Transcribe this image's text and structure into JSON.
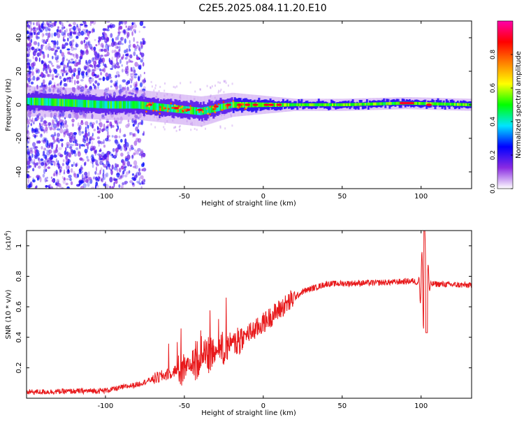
{
  "title": "C2E5.2025.084.11.20.E10",
  "chart_data": [
    {
      "type": "heatmap",
      "xlabel": "Height of straight line (km)",
      "ylabel": "Frequency (Hz)",
      "xlim": [
        -150,
        132
      ],
      "ylim": [
        -50,
        50
      ],
      "xticks": [
        -100,
        -50,
        0,
        50,
        100
      ],
      "yticks": [
        -40,
        -20,
        0,
        20,
        40
      ],
      "colorbar": {
        "label": "Normalized spectral amplitude",
        "range": [
          0.0,
          1.0
        ],
        "ticks": [
          0.0,
          0.2,
          0.4,
          0.6,
          0.8
        ],
        "tick_labels": [
          "0.0",
          "0.2",
          "0.4",
          "0.6",
          "0.8"
        ],
        "stops": [
          "#ffffff",
          "#8a2be2",
          "#0000ff",
          "#00e5ff",
          "#00ff00",
          "#ffff00",
          "#ff8000",
          "#ff0000",
          "#ff00aa"
        ]
      },
      "centerline": [
        {
          "x": -145,
          "y": 2
        },
        {
          "x": -120,
          "y": 1
        },
        {
          "x": -100,
          "y": 0
        },
        {
          "x": -80,
          "y": 0
        },
        {
          "x": -70,
          "y": -1
        },
        {
          "x": -60,
          "y": -2
        },
        {
          "x": -50,
          "y": -3
        },
        {
          "x": -40,
          "y": -4
        },
        {
          "x": -30,
          "y": -2
        },
        {
          "x": -20,
          "y": 0
        },
        {
          "x": 0,
          "y": 0
        },
        {
          "x": 50,
          "y": 0
        },
        {
          "x": 90,
          "y": 1
        },
        {
          "x": 132,
          "y": 0
        }
      ],
      "band": {
        "left_halfwidth": 5,
        "right_halfwidth": 2
      },
      "noise_region": {
        "x": [
          -150,
          -75
        ],
        "y": [
          -50,
          50
        ]
      },
      "grid": false
    },
    {
      "type": "line",
      "xlabel": "Height of straight line (km)",
      "ylabel": "SNR (10 * v/v)",
      "y_multiplier_label": "(x10",
      "y_multiplier_exponent": "4",
      "y_multiplier_close": ")",
      "xlim": [
        -150,
        132
      ],
      "ylim": [
        0.0,
        1.1
      ],
      "xticks": [
        -100,
        -50,
        0,
        50,
        100
      ],
      "yticks": [
        0.2,
        0.4,
        0.6,
        0.8,
        1.0
      ],
      "ytick_labels": [
        "0.2",
        "0.4",
        "0.6",
        "0.8",
        "1"
      ],
      "color": "#e8191b",
      "envelope": [
        {
          "x": -150,
          "y": 0.04
        },
        {
          "x": -100,
          "y": 0.05
        },
        {
          "x": -80,
          "y": 0.09
        },
        {
          "x": -60,
          "y": 0.16
        },
        {
          "x": -40,
          "y": 0.26
        },
        {
          "x": -20,
          "y": 0.36
        },
        {
          "x": -5,
          "y": 0.45
        },
        {
          "x": 10,
          "y": 0.58
        },
        {
          "x": 25,
          "y": 0.7
        },
        {
          "x": 40,
          "y": 0.75
        },
        {
          "x": 80,
          "y": 0.76
        },
        {
          "x": 95,
          "y": 0.77
        },
        {
          "x": 102,
          "y": 0.74
        },
        {
          "x": 108,
          "y": 0.75
        },
        {
          "x": 132,
          "y": 0.74
        }
      ],
      "spike": {
        "x": 102,
        "peak": 1.1,
        "trough": 0.43
      },
      "grid": false,
      "legend": "none"
    }
  ]
}
